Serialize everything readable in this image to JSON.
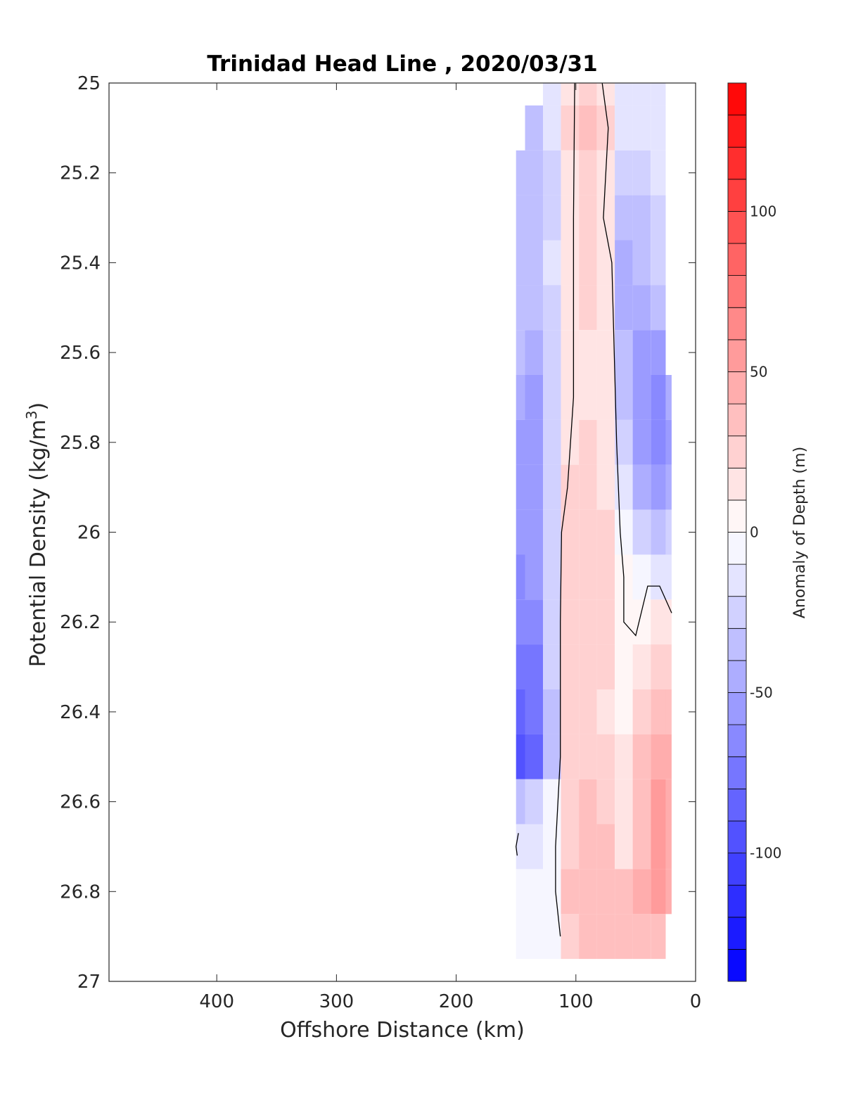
{
  "chart_data": {
    "type": "heatmap",
    "title": "Trinidad Head Line , 2020/03/31",
    "xlabel": "Offshore Distance (km)",
    "ylabel_text": "Potential Density (kg/m",
    "ylabel_sup": "3",
    "ylabel_close": ")",
    "xlim": [
      490,
      0
    ],
    "ylim": [
      25,
      27
    ],
    "y_reversed": true,
    "x_ticks": [
      400,
      300,
      200,
      100,
      0
    ],
    "y_ticks": [
      "25",
      "25.2",
      "25.4",
      "25.6",
      "25.8",
      "26",
      "26.2",
      "26.4",
      "26.6",
      "26.8",
      "27"
    ],
    "colorbar": {
      "label": "Anomaly of Depth (m)",
      "range": [
        -140,
        140
      ],
      "step": 10,
      "ticks": [
        "100",
        "50",
        "0",
        "-50",
        "-100"
      ],
      "tick_values": [
        100,
        50,
        0,
        -50,
        -100
      ],
      "colormap": "blue-white-red",
      "low_color": "#0000ff",
      "mid_color": "#ffffff",
      "high_color": "#ff0000"
    },
    "zero_contour": "black",
    "grid": false,
    "x_stations": [
      150,
      135,
      120,
      105,
      90,
      75,
      60,
      45,
      30,
      20
    ],
    "y_levels": [
      25.0,
      25.1,
      25.2,
      25.3,
      25.4,
      25.5,
      25.6,
      25.7,
      25.8,
      25.9,
      26.0,
      26.1,
      26.2,
      26.3,
      26.4,
      26.5,
      26.6,
      26.7,
      26.8,
      26.9
    ],
    "anomaly": [
      [
        null,
        null,
        -15,
        15,
        20,
        10,
        -15,
        -15,
        -15,
        null
      ],
      [
        null,
        -40,
        -20,
        20,
        35,
        25,
        -20,
        -20,
        -20,
        null
      ],
      [
        -40,
        -40,
        -25,
        15,
        25,
        15,
        -30,
        -25,
        -20,
        null
      ],
      [
        -35,
        -35,
        -25,
        15,
        25,
        15,
        -35,
        -35,
        -25,
        null
      ],
      [
        -35,
        -35,
        -20,
        15,
        20,
        10,
        -45,
        -40,
        -30,
        null
      ],
      [
        -35,
        -40,
        -25,
        15,
        20,
        10,
        -45,
        -50,
        -40,
        null
      ],
      [
        -40,
        -45,
        -25,
        10,
        15,
        10,
        -40,
        -55,
        -55,
        null
      ],
      [
        -50,
        -55,
        -30,
        10,
        15,
        10,
        -40,
        -60,
        -65,
        -50
      ],
      [
        -55,
        -55,
        -30,
        15,
        20,
        10,
        -30,
        -60,
        -70,
        -60
      ],
      [
        -55,
        -55,
        -25,
        20,
        25,
        15,
        -20,
        -50,
        -60,
        -50
      ],
      [
        -60,
        -55,
        -25,
        20,
        25,
        20,
        -10,
        -25,
        -35,
        -30
      ],
      [
        -65,
        -60,
        -25,
        20,
        20,
        20,
        5,
        -10,
        -20,
        -15
      ],
      [
        -70,
        -65,
        -30,
        20,
        20,
        20,
        5,
        5,
        15,
        10
      ],
      [
        -80,
        -75,
        -30,
        20,
        25,
        20,
        5,
        15,
        20,
        20
      ],
      [
        -90,
        -80,
        -35,
        20,
        20,
        15,
        5,
        20,
        35,
        30
      ],
      [
        -100,
        -90,
        -40,
        20,
        25,
        20,
        15,
        30,
        45,
        40
      ],
      [
        -40,
        -30,
        -10,
        25,
        30,
        20,
        15,
        30,
        50,
        40
      ],
      [
        -15,
        -15,
        -5,
        25,
        35,
        30,
        15,
        35,
        50,
        40
      ],
      [
        -10,
        -10,
        -5,
        30,
        35,
        30,
        35,
        45,
        55,
        40
      ],
      [
        -10,
        -10,
        -5,
        25,
        30,
        30,
        30,
        30,
        30,
        null
      ]
    ],
    "zero_contour_lines": [
      [
        [
          101,
          25.0
        ],
        [
          102,
          25.3
        ],
        [
          102,
          25.7
        ],
        [
          107,
          25.9
        ],
        [
          112,
          26.0
        ],
        [
          113,
          26.2
        ],
        [
          113,
          26.5
        ],
        [
          115,
          26.6
        ],
        [
          117,
          26.7
        ],
        [
          117,
          26.8
        ],
        [
          113,
          26.9
        ]
      ],
      [
        [
          78,
          25.0
        ],
        [
          73,
          25.1
        ],
        [
          77,
          25.3
        ],
        [
          70,
          25.4
        ],
        [
          68,
          25.6
        ],
        [
          66,
          25.8
        ],
        [
          63,
          26.0
        ],
        [
          60,
          26.1
        ],
        [
          60,
          26.2
        ],
        [
          50,
          26.23
        ],
        [
          40,
          26.12
        ],
        [
          30,
          26.12
        ],
        [
          20,
          26.18
        ]
      ],
      [
        [
          148,
          26.67
        ],
        [
          150,
          26.7
        ],
        [
          149,
          26.72
        ]
      ]
    ]
  }
}
